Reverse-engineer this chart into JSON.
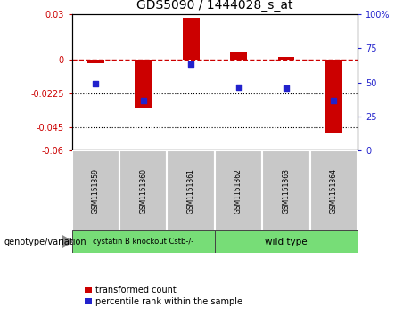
{
  "title": "GDS5090 / 1444028_s_at",
  "samples": [
    "GSM1151359",
    "GSM1151360",
    "GSM1151361",
    "GSM1151362",
    "GSM1151363",
    "GSM1151364"
  ],
  "red_values": [
    -0.002,
    -0.032,
    0.028,
    0.005,
    0.002,
    -0.049
  ],
  "blue_y": [
    -0.016,
    -0.027,
    -0.003,
    -0.018,
    -0.019,
    -0.027
  ],
  "ylim": [
    -0.06,
    0.03
  ],
  "yticks_left": [
    0.03,
    0,
    -0.0225,
    -0.045,
    -0.06
  ],
  "yticks_right_vals": [
    100,
    75,
    50,
    25,
    0
  ],
  "hlines": [
    -0.0225,
    -0.045
  ],
  "group1_label": "cystatin B knockout Cstb-/-",
  "group2_label": "wild type",
  "group_label_prefix": "genotype/variation",
  "legend_red": "transformed count",
  "legend_blue": "percentile rank within the sample",
  "bar_color": "#CC0000",
  "dot_color": "#2222CC",
  "sample_box_color": "#C8C8C8",
  "group_box_color": "#77DD77"
}
